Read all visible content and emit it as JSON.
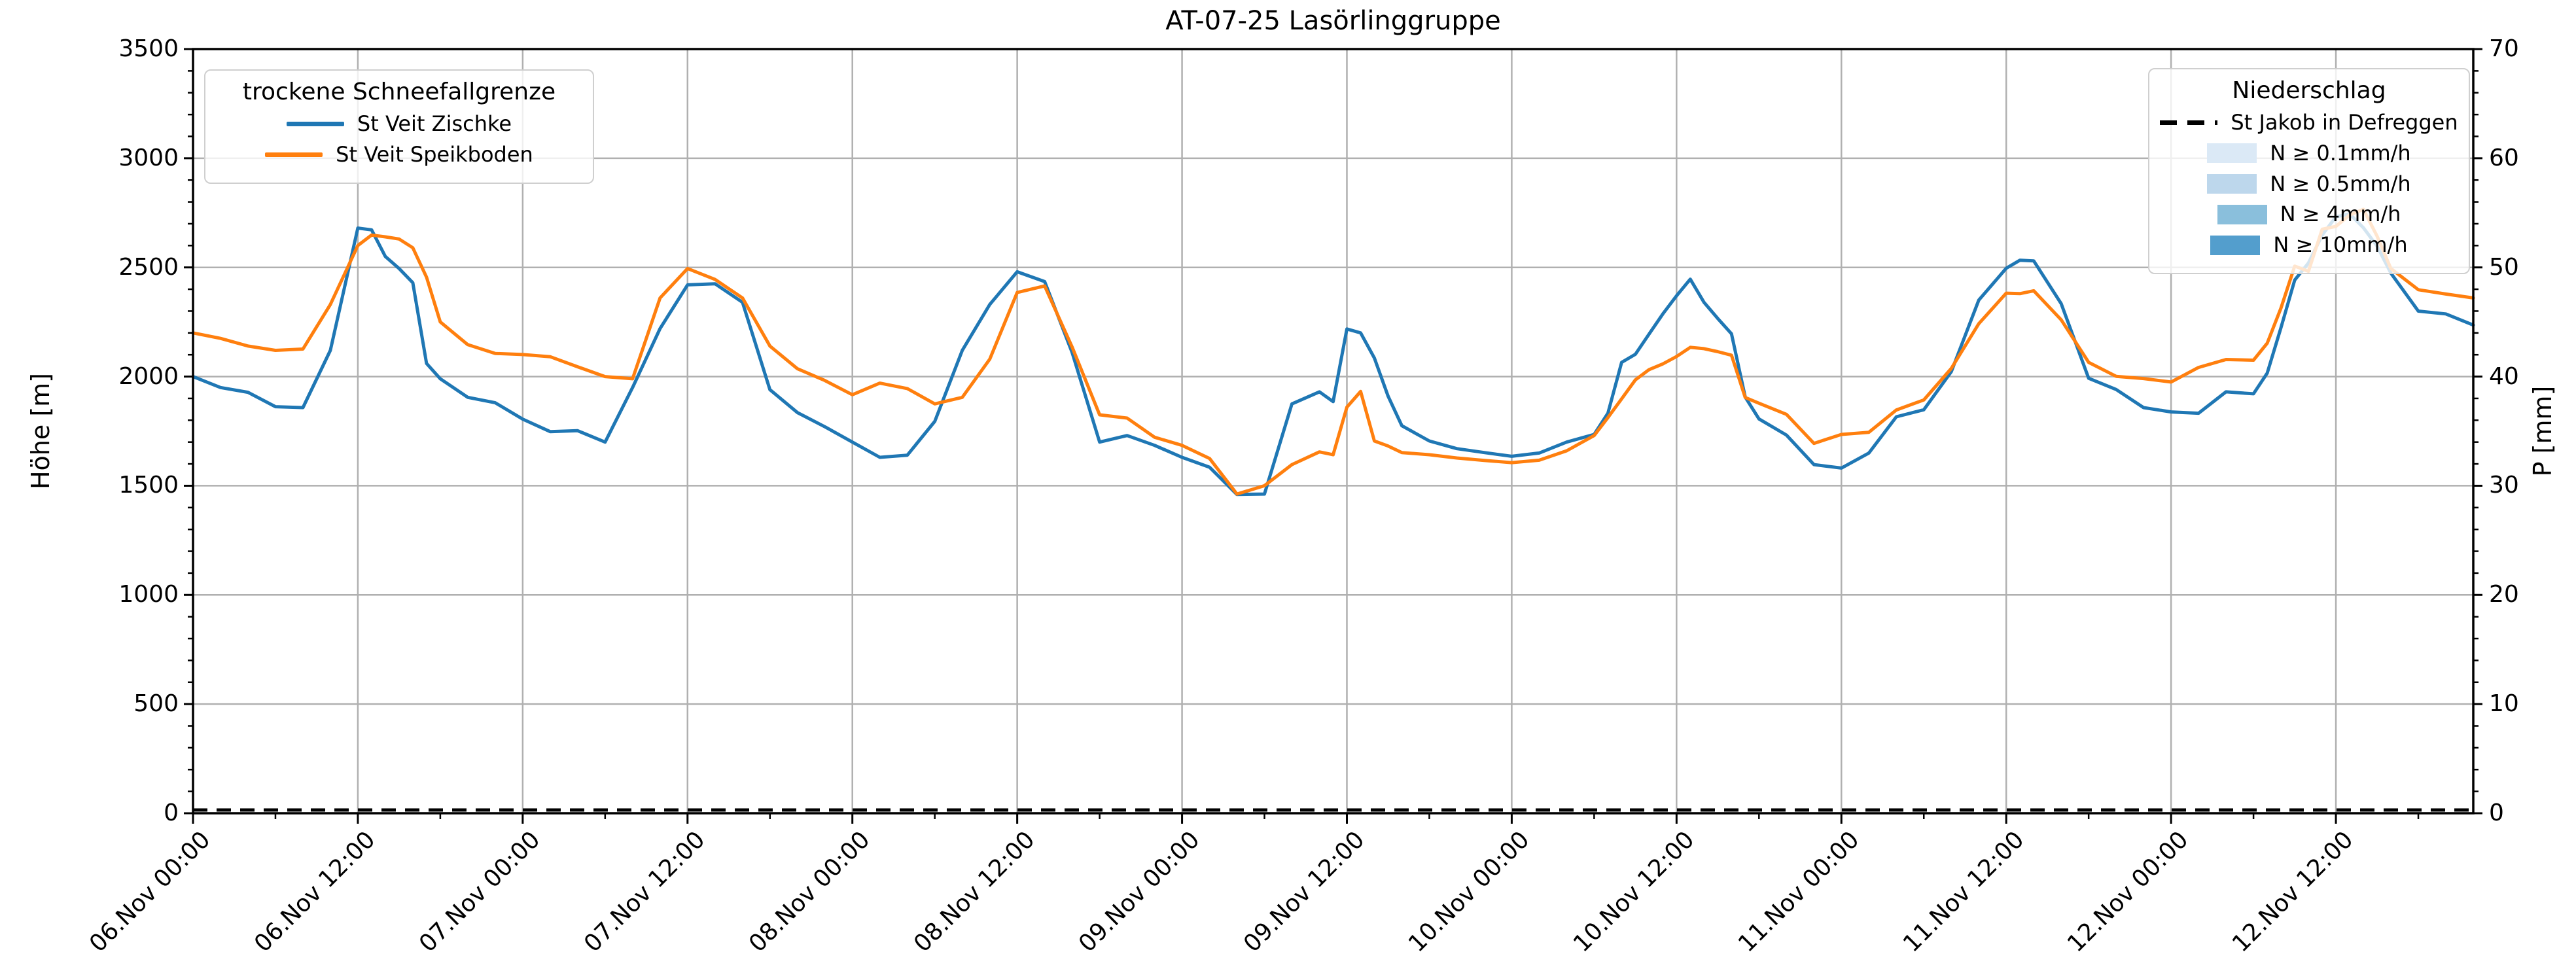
{
  "title": "AT-07-25 Lasörlinggruppe",
  "axes": {
    "y_left": {
      "label": "Höhe [m]",
      "range": [
        0,
        3500
      ],
      "major_ticks": [
        0,
        500,
        1000,
        1500,
        2000,
        2500,
        3000,
        3500
      ],
      "minor_step": 100
    },
    "y_right": {
      "label": "P [mm]",
      "range": [
        0,
        70
      ],
      "major_ticks": [
        0,
        10,
        20,
        30,
        40,
        50,
        60,
        70
      ],
      "minor_step": 2
    },
    "x": {
      "range_hours": [
        0,
        166
      ],
      "major_tick_hours": [
        0,
        12,
        24,
        36,
        48,
        60,
        72,
        84,
        96,
        108,
        120,
        132,
        144,
        156
      ],
      "minor_step_hours": 6,
      "tick_labels": [
        "06.Nov 00:00",
        "06.Nov 12:00",
        "07.Nov 00:00",
        "07.Nov 12:00",
        "08.Nov 00:00",
        "08.Nov 12:00",
        "09.Nov 00:00",
        "09.Nov 12:00",
        "10.Nov 00:00",
        "10.Nov 12:00",
        "11.Nov 00:00",
        "11.Nov 12:00",
        "12.Nov 00:00",
        "12.Nov 12:00"
      ]
    }
  },
  "legend_left": {
    "title": "trockene Schneefallgrenze",
    "items": [
      {
        "label": "St Veit Zischke",
        "type": "line",
        "color": "#1f77b4"
      },
      {
        "label": "St Veit Speikboden",
        "type": "line",
        "color": "#ff7f0e"
      }
    ]
  },
  "legend_right": {
    "title": "Niederschlag",
    "items": [
      {
        "label": "St Jakob in Defreggen",
        "type": "dashed-line",
        "color": "#000000"
      },
      {
        "label": "N ≥ 0.1mm/h",
        "type": "patch",
        "color": "#dbe9f6"
      },
      {
        "label": "N ≥ 0.5mm/h",
        "type": "patch",
        "color": "#bdd7ec"
      },
      {
        "label": "N ≥ 4mm/h",
        "type": "patch",
        "color": "#8abfdc"
      },
      {
        "label": "N ≥ 10mm/h",
        "type": "patch",
        "color": "#539ecd"
      }
    ]
  },
  "colors": {
    "series_blue": "#1f77b4",
    "series_orange": "#ff7f0e",
    "grid": "#b0b0b0",
    "spine": "#000000",
    "precip_line": "#000000"
  },
  "chart_data": {
    "type": "line",
    "title": "AT-07-25 Lasörlinggruppe",
    "ylabel_left": "Höhe [m]",
    "ylabel_right": "P [mm]",
    "ylim_left": [
      0,
      3500
    ],
    "ylim_right": [
      0,
      70
    ],
    "grid": true,
    "x_unit": "hours since 06.Nov 00:00",
    "x_start_label": "06.Nov 00:00",
    "x_end_label": "12.Nov 22:00",
    "x_hours": [
      0,
      2,
      4,
      6,
      8,
      10,
      12,
      13,
      14,
      15,
      16,
      17,
      18,
      20,
      22,
      24,
      26,
      28,
      30,
      32,
      34,
      36,
      38,
      40,
      42,
      44,
      46,
      48,
      50,
      52,
      54,
      56,
      58,
      60,
      62,
      64,
      66,
      68,
      70,
      72,
      74,
      76,
      78,
      80,
      82,
      83,
      84,
      85,
      86,
      87,
      88,
      90,
      92,
      94,
      96,
      98,
      100,
      102,
      103,
      104,
      105,
      106,
      107,
      108,
      109,
      110,
      111,
      112,
      113,
      114,
      116,
      118,
      120,
      122,
      124,
      126,
      128,
      130,
      132,
      133,
      134,
      136,
      138,
      140,
      142,
      144,
      146,
      148,
      150,
      151,
      152,
      153,
      154,
      155,
      156,
      157,
      158,
      159,
      160,
      162,
      164,
      166
    ],
    "series": [
      {
        "name": "St Veit Zischke",
        "axis": "left",
        "unit": "m",
        "color": "#1f77b4",
        "style": "solid",
        "values": [
          2000,
          1950,
          1928,
          1862,
          1858,
          2120,
          2680,
          2672,
          2550,
          2495,
          2430,
          2060,
          1990,
          1905,
          1880,
          1805,
          1748,
          1752,
          1700,
          1950,
          2220,
          2420,
          2425,
          2340,
          1940,
          1835,
          1770,
          1700,
          1630,
          1640,
          1795,
          2120,
          2330,
          2480,
          2435,
          2110,
          1700,
          1730,
          1685,
          1630,
          1585,
          1460,
          1462,
          1875,
          1930,
          1885,
          2218,
          2200,
          2085,
          1910,
          1775,
          1705,
          1670,
          1652,
          1635,
          1650,
          1700,
          1735,
          1832,
          2065,
          2102,
          2195,
          2287,
          2370,
          2446,
          2340,
          2266,
          2196,
          1906,
          1806,
          1732,
          1597,
          1581,
          1650,
          1816,
          1848,
          2022,
          2350,
          2496,
          2533,
          2530,
          2334,
          1992,
          1941,
          1858,
          1838,
          1832,
          1930,
          1921,
          2016,
          2224,
          2442,
          2520,
          2648,
          2732,
          2745,
          2682,
          2597,
          2474,
          2300,
          2287,
          2236
        ]
      },
      {
        "name": "St Veit Speikboden",
        "axis": "left",
        "unit": "m",
        "color": "#ff7f0e",
        "style": "solid",
        "values": [
          2200,
          2175,
          2140,
          2120,
          2126,
          2330,
          2600,
          2648,
          2640,
          2630,
          2590,
          2455,
          2250,
          2146,
          2106,
          2101,
          2091,
          2045,
          2000,
          1990,
          2360,
          2495,
          2445,
          2360,
          2140,
          2036,
          1982,
          1917,
          1970,
          1945,
          1875,
          1905,
          2080,
          2385,
          2415,
          2135,
          1825,
          1810,
          1722,
          1685,
          1625,
          1462,
          1500,
          1597,
          1655,
          1642,
          1860,
          1932,
          1705,
          1682,
          1652,
          1642,
          1627,
          1616,
          1606,
          1617,
          1660,
          1730,
          1812,
          1898,
          1985,
          2032,
          2058,
          2092,
          2134,
          2128,
          2114,
          2098,
          1904,
          1878,
          1827,
          1694,
          1735,
          1745,
          1847,
          1893,
          2037,
          2242,
          2382,
          2380,
          2393,
          2260,
          2065,
          2001,
          1991,
          1975,
          2042,
          2078,
          2075,
          2153,
          2314,
          2506,
          2482,
          2675,
          2688,
          2740,
          2766,
          2643,
          2495,
          2398,
          2378,
          2360
        ]
      },
      {
        "name": "St Jakob in Defreggen",
        "axis": "right",
        "unit": "mm",
        "color": "#000000",
        "style": "dashed",
        "constant_value": 0
      }
    ]
  }
}
